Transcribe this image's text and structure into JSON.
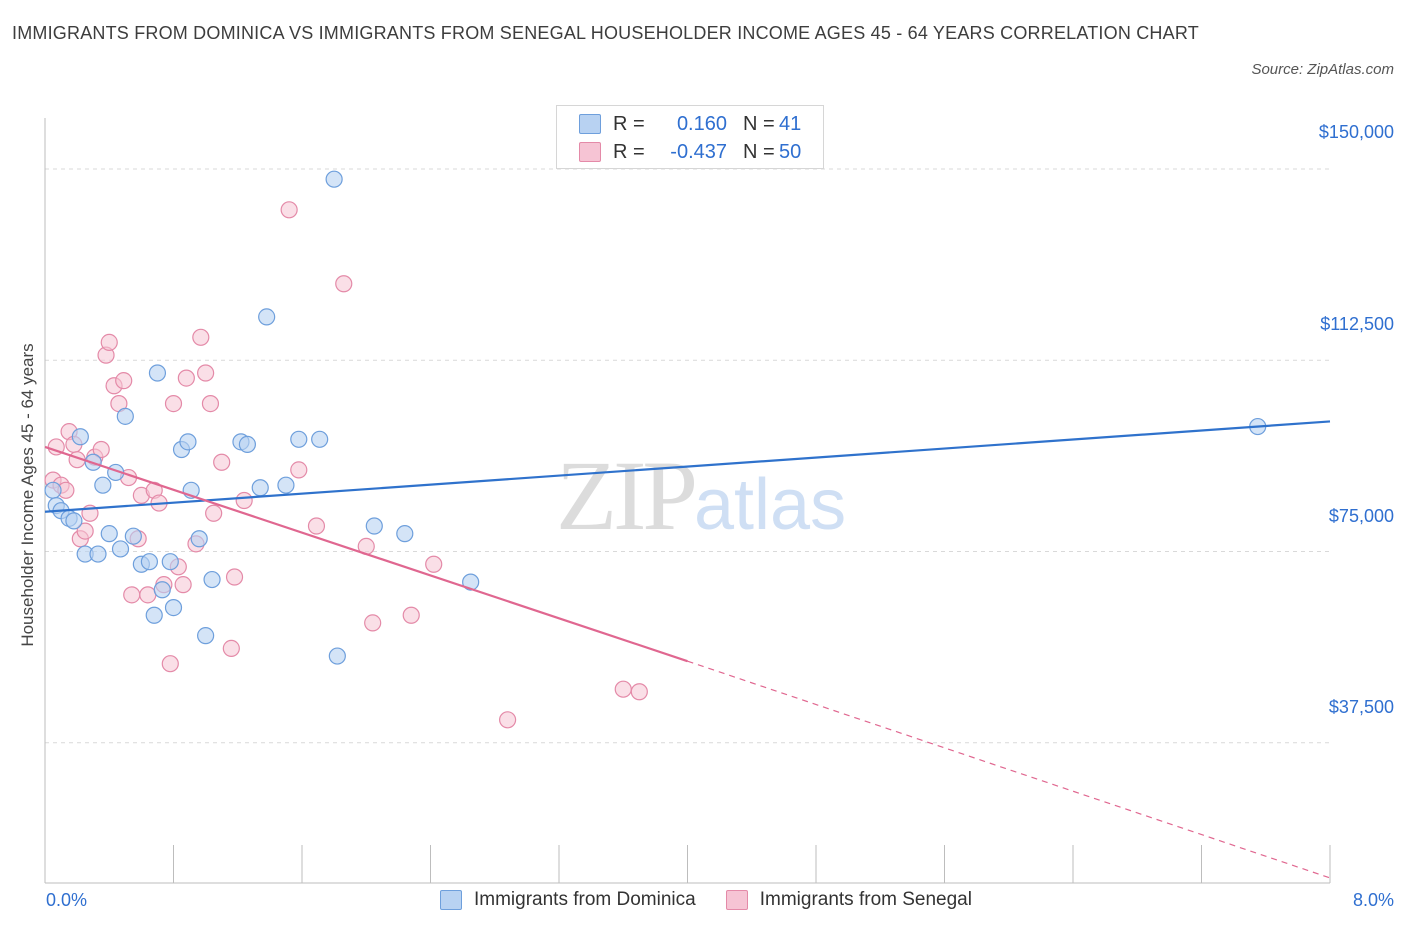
{
  "header": {
    "title": "IMMIGRANTS FROM DOMINICA VS IMMIGRANTS FROM SENEGAL HOUSEHOLDER INCOME AGES 45 - 64 YEARS CORRELATION CHART",
    "source": "Source: ZipAtlas.com"
  },
  "watermark": {
    "zip": "ZIP",
    "atlas": "atlas"
  },
  "legend": {
    "rows": [
      {
        "r_label": "R =",
        "r_value": "0.160",
        "n_label": "N =",
        "n_value": "41"
      },
      {
        "r_label": "R =",
        "r_value": "-0.437",
        "n_label": "N =",
        "n_value": "50"
      }
    ]
  },
  "bottom_legend": {
    "series1": "Immigrants from Dominica",
    "series2": "Immigrants from Senegal"
  },
  "colors": {
    "dominica_fill": "#b8d2f2",
    "dominica_stroke": "#6e9fdc",
    "dominica_line": "#2f72cc",
    "senegal_fill": "#f6c4d4",
    "senegal_stroke": "#e48aa8",
    "senegal_line": "#e06790",
    "axis_text": "#2f6fd0",
    "grid": "#d9d9d9"
  },
  "chart_data": {
    "type": "scatter",
    "title": "IMMIGRANTS FROM DOMINICA VS IMMIGRANTS FROM SENEGAL HOUSEHOLDER INCOME AGES 45 - 64 YEARS CORRELATION CHART",
    "xlabel": "",
    "ylabel": "Householder Income Ages 45 - 64 years",
    "xlim": [
      0,
      8
    ],
    "ylim": [
      10000,
      160000
    ],
    "x_tick_labels": [
      "0.0%",
      "8.0%"
    ],
    "y_ticks": [
      37500,
      75000,
      112500,
      150000
    ],
    "y_tick_labels": [
      "$37,500",
      "$75,000",
      "$112,500",
      "$150,000"
    ],
    "grid": true,
    "legend_position": "top-center",
    "series": [
      {
        "name": "Immigrants from Dominica",
        "R": 0.16,
        "N": 41,
        "trend": {
          "x": [
            0,
            8
          ],
          "y": [
            82800,
            100500
          ]
        },
        "points": [
          [
            0.05,
            87000
          ],
          [
            0.07,
            84000
          ],
          [
            0.1,
            83000
          ],
          [
            0.15,
            81500
          ],
          [
            0.18,
            81000
          ],
          [
            0.22,
            97500
          ],
          [
            0.25,
            74500
          ],
          [
            0.3,
            92500
          ],
          [
            0.33,
            74500
          ],
          [
            0.36,
            88000
          ],
          [
            0.4,
            78500
          ],
          [
            0.44,
            90500
          ],
          [
            0.47,
            75500
          ],
          [
            0.5,
            101500
          ],
          [
            0.55,
            78000
          ],
          [
            0.6,
            72500
          ],
          [
            0.65,
            73000
          ],
          [
            0.68,
            62500
          ],
          [
            0.7,
            110000
          ],
          [
            0.73,
            67500
          ],
          [
            0.78,
            73000
          ],
          [
            0.8,
            64000
          ],
          [
            0.85,
            95000
          ],
          [
            0.89,
            96500
          ],
          [
            0.91,
            87000
          ],
          [
            0.96,
            77500
          ],
          [
            1.0,
            58500
          ],
          [
            1.04,
            69500
          ],
          [
            1.22,
            96500
          ],
          [
            1.26,
            96000
          ],
          [
            1.34,
            87500
          ],
          [
            1.38,
            121000
          ],
          [
            1.5,
            88000
          ],
          [
            1.58,
            97000
          ],
          [
            1.71,
            97000
          ],
          [
            1.8,
            148000
          ],
          [
            1.82,
            54500
          ],
          [
            2.05,
            80000
          ],
          [
            2.24,
            78500
          ],
          [
            2.65,
            69000
          ],
          [
            7.55,
            99500
          ]
        ]
      },
      {
        "name": "Immigrants from Senegal",
        "R": -0.437,
        "N": 50,
        "trend": {
          "x": [
            0,
            4.0
          ],
          "y": [
            95500,
            53500
          ]
        },
        "trend_dashed": {
          "x": [
            4.0,
            8
          ],
          "y": [
            53500,
            11000
          ]
        },
        "points": [
          [
            0.05,
            89000
          ],
          [
            0.07,
            95500
          ],
          [
            0.1,
            88000
          ],
          [
            0.13,
            87000
          ],
          [
            0.15,
            98500
          ],
          [
            0.18,
            96000
          ],
          [
            0.2,
            93000
          ],
          [
            0.22,
            77500
          ],
          [
            0.25,
            79000
          ],
          [
            0.28,
            82500
          ],
          [
            0.31,
            93500
          ],
          [
            0.35,
            95000
          ],
          [
            0.38,
            113500
          ],
          [
            0.4,
            116000
          ],
          [
            0.43,
            107500
          ],
          [
            0.46,
            104000
          ],
          [
            0.49,
            108500
          ],
          [
            0.52,
            89500
          ],
          [
            0.54,
            66500
          ],
          [
            0.58,
            77500
          ],
          [
            0.6,
            86000
          ],
          [
            0.64,
            66500
          ],
          [
            0.68,
            87000
          ],
          [
            0.71,
            84500
          ],
          [
            0.74,
            68500
          ],
          [
            0.78,
            53000
          ],
          [
            0.8,
            104000
          ],
          [
            0.83,
            72000
          ],
          [
            0.86,
            68500
          ],
          [
            0.88,
            109000
          ],
          [
            0.94,
            76500
          ],
          [
            0.97,
            117000
          ],
          [
            1.0,
            110000
          ],
          [
            1.03,
            104000
          ],
          [
            1.05,
            82500
          ],
          [
            1.1,
            92500
          ],
          [
            1.16,
            56000
          ],
          [
            1.18,
            70000
          ],
          [
            1.24,
            85000
          ],
          [
            1.52,
            142000
          ],
          [
            1.58,
            91000
          ],
          [
            1.69,
            80000
          ],
          [
            1.86,
            127500
          ],
          [
            2.0,
            76000
          ],
          [
            2.04,
            61000
          ],
          [
            2.28,
            62500
          ],
          [
            2.42,
            72500
          ],
          [
            2.88,
            42000
          ],
          [
            3.6,
            48000
          ],
          [
            3.7,
            47500
          ]
        ]
      }
    ]
  }
}
